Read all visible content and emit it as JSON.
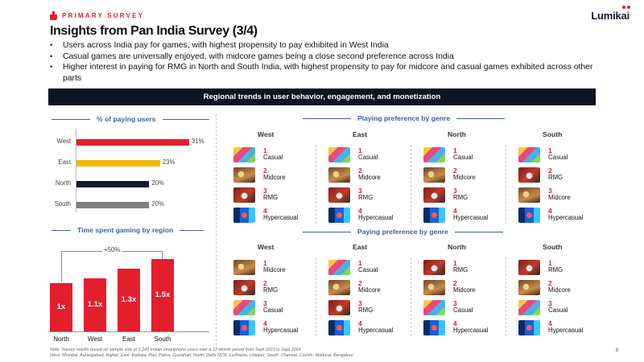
{
  "header": {
    "survey_tag": "PRIMARY SURVEY",
    "logo": "Lumikai",
    "title": "Insights from Pan India Survey (3/4)"
  },
  "bullets": [
    "Users across India pay for games, with highest propensity to pay exhibited in West India",
    "Casual games are universally enjoyed, with midcore games being a close second preference across India",
    "Higher interest in paying for RMG in North and South India, with highest propensity to pay for midcore and casual games exhibited across other parts"
  ],
  "banner": "Regional trends in user behavior, engagement, and monetization",
  "paying_users": {
    "heading": "% of paying users",
    "chart_data": {
      "type": "bar",
      "orientation": "horizontal",
      "title": "% of paying users",
      "categories": [
        "West",
        "East",
        "North",
        "South"
      ],
      "values": [
        31,
        23,
        20,
        20
      ],
      "value_labels": [
        "31%",
        "23%",
        "20%",
        "20%"
      ],
      "colors": [
        "#e31e2d",
        "#f5b800",
        "#141a33",
        "#7f7f7f"
      ],
      "xlim": [
        0,
        31
      ]
    }
  },
  "time_spent": {
    "heading": "Time spent gaming by region",
    "growth_note": "+50%",
    "chart_data": {
      "type": "bar",
      "title": "Time spent gaming by region",
      "categories": [
        "North",
        "West",
        "East",
        "South"
      ],
      "values": [
        1.0,
        1.1,
        1.3,
        1.5
      ],
      "value_labels": [
        "1x",
        "1.1x",
        "1.3x",
        "1.5x"
      ],
      "color": "#e31e2d",
      "ylim": [
        0,
        1.5
      ]
    }
  },
  "playing_pref": {
    "heading": "Playing preference by genre",
    "regions": [
      {
        "name": "West",
        "items": [
          {
            "rank": "1",
            "genre": "Casual",
            "icon": "casual-game-thumbnail"
          },
          {
            "rank": "2",
            "genre": "Midcore",
            "icon": "midcore-game-thumbnail"
          },
          {
            "rank": "3",
            "genre": "RMG",
            "icon": "rmg-game-thumbnail"
          },
          {
            "rank": "4",
            "genre": "Hypercasual",
            "icon": "hypercasual-game-thumbnail"
          }
        ]
      },
      {
        "name": "East",
        "items": [
          {
            "rank": "1",
            "genre": "Casual",
            "icon": "casual-game-thumbnail"
          },
          {
            "rank": "2",
            "genre": "Midcore",
            "icon": "midcore-game-thumbnail"
          },
          {
            "rank": "3",
            "genre": "RMG",
            "icon": "rmg-game-thumbnail"
          },
          {
            "rank": "4",
            "genre": "Hypercasual",
            "icon": "hypercasual-game-thumbnail"
          }
        ]
      },
      {
        "name": "North",
        "items": [
          {
            "rank": "1",
            "genre": "Casual",
            "icon": "casual-game-thumbnail"
          },
          {
            "rank": "2",
            "genre": "Midcore",
            "icon": "midcore-game-thumbnail"
          },
          {
            "rank": "3",
            "genre": "RMG",
            "icon": "rmg-game-thumbnail"
          },
          {
            "rank": "4",
            "genre": "Hypercasual",
            "icon": "hypercasual-game-thumbnail"
          }
        ]
      },
      {
        "name": "South",
        "items": [
          {
            "rank": "1",
            "genre": "Casual",
            "icon": "casual-game-thumbnail"
          },
          {
            "rank": "2",
            "genre": "RMG",
            "icon": "rmg-game-thumbnail"
          },
          {
            "rank": "3",
            "genre": "Midcore",
            "icon": "midcore-game-thumbnail"
          },
          {
            "rank": "4",
            "genre": "Hypercasual",
            "icon": "hypercasual-game-thumbnail"
          }
        ]
      }
    ]
  },
  "paying_pref": {
    "heading": "Paying preference by genre",
    "regions": [
      {
        "name": "West",
        "items": [
          {
            "rank": "1",
            "genre": "Midcore",
            "icon": "midcore-game-thumbnail"
          },
          {
            "rank": "2",
            "genre": "RMG",
            "icon": "rmg-game-thumbnail"
          },
          {
            "rank": "3",
            "genre": "Casual",
            "icon": "casual-game-thumbnail"
          },
          {
            "rank": "4",
            "genre": "Hypercasual",
            "icon": "hypercasual-game-thumbnail"
          }
        ]
      },
      {
        "name": "East",
        "items": [
          {
            "rank": "1",
            "genre": "Casual",
            "icon": "casual-game-thumbnail"
          },
          {
            "rank": "2",
            "genre": "Midcore",
            "icon": "midcore-game-thumbnail"
          },
          {
            "rank": "3",
            "genre": "RMG",
            "icon": "rmg-game-thumbnail"
          },
          {
            "rank": "4",
            "genre": "Hypercasual",
            "icon": "hypercasual-game-thumbnail"
          }
        ]
      },
      {
        "name": "North",
        "items": [
          {
            "rank": "1",
            "genre": "RMG",
            "icon": "rmg-game-thumbnail"
          },
          {
            "rank": "2",
            "genre": "Midcore",
            "icon": "midcore-game-thumbnail"
          },
          {
            "rank": "3",
            "genre": "Casual",
            "icon": "casual-game-thumbnail"
          },
          {
            "rank": "4",
            "genre": "Hypercasual",
            "icon": "hypercasual-game-thumbnail"
          }
        ]
      },
      {
        "name": "South",
        "items": [
          {
            "rank": "1",
            "genre": "RMG",
            "icon": "rmg-game-thumbnail"
          },
          {
            "rank": "2",
            "genre": "Midcore",
            "icon": "midcore-game-thumbnail"
          },
          {
            "rank": "3",
            "genre": "Casual",
            "icon": "casual-game-thumbnail"
          },
          {
            "rank": "4",
            "genre": "Hypercasual",
            "icon": "hypercasual-game-thumbnail"
          }
        ]
      }
    ]
  },
  "footnote": [
    "Note: Survey results based on sample size of 2,249 Indian smartphone users over a 12-month period from Sept 2023 to Sept 2024",
    "West: Mumbai, Aurangabad, Rajkot; East: Kolkata, Puri, Patna, Guwahati; North: Delhi NCR, Ludhiana, Udaipur; South: Chennai, Cochin, Madurai, Bengaluru"
  ],
  "page_number": "9",
  "colors": {
    "accent_red": "#e31e2d",
    "navy": "#101322",
    "section_blue": "#3b5fa6"
  }
}
